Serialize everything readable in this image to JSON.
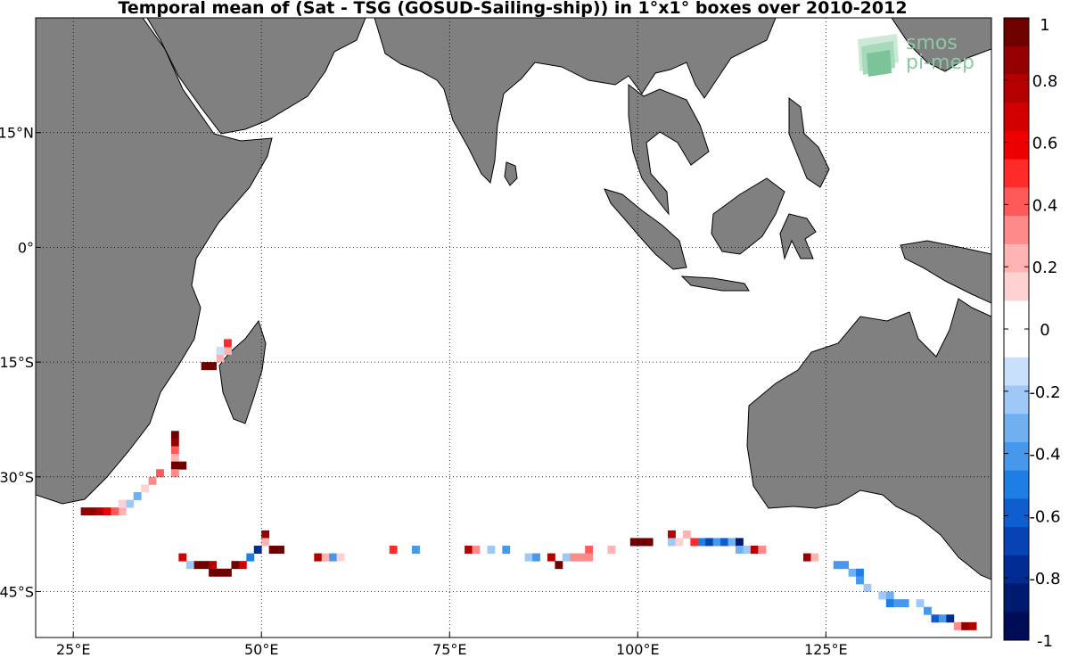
{
  "title": "Temporal mean of (Sat - TSG (GOSUD-Sailing-ship)) in 1°x1° boxes over 2010-2012",
  "logo": {
    "line1": "smos",
    "line2": "pi-mep",
    "icon": "smos-pi-mep-logo-icon"
  },
  "map": {
    "region": "Indian Ocean",
    "lon_range": [
      20,
      147
    ],
    "lat_range": [
      -51,
      30
    ],
    "land_color": "#808080",
    "ocean_color": "#ffffff",
    "grid": "dotted",
    "lon_ticks": [
      {
        "value": 25,
        "label": "25°E"
      },
      {
        "value": 50,
        "label": "50°E"
      },
      {
        "value": 75,
        "label": "75°E"
      },
      {
        "value": 100,
        "label": "100°E"
      },
      {
        "value": 125,
        "label": "125°E"
      }
    ],
    "lat_ticks": [
      {
        "value": 15,
        "label": "15°N"
      },
      {
        "value": 0,
        "label": "0°"
      },
      {
        "value": -15,
        "label": "15°S"
      },
      {
        "value": -30,
        "label": "30°S"
      },
      {
        "value": -45,
        "label": "45°S"
      }
    ]
  },
  "colorbar": {
    "range": [
      -1,
      1
    ],
    "ticks": [
      "1",
      "0.8",
      "0.6",
      "0.4",
      "0.2",
      "0",
      "-0.2",
      "-0.4",
      "-0.6",
      "-0.8",
      "-1"
    ],
    "colors": [
      "#6e0000",
      "#950000",
      "#b40000",
      "#d20000",
      "#ee0000",
      "#ff2a2a",
      "#ff5a5a",
      "#ff8a8a",
      "#ffb3b3",
      "#ffd2d2",
      "#ffffff",
      "#ffffff",
      "#c8e0fb",
      "#9ec8f5",
      "#70b0f0",
      "#4698ec",
      "#1f7ee3",
      "#0e5ed0",
      "#0743b2",
      "#002b92",
      "#001a70",
      "#000c55"
    ]
  },
  "data_cells": [
    [
      44,
      -15,
      0.25
    ],
    [
      45,
      -14,
      0.25
    ],
    [
      45,
      -13,
      0.5
    ],
    [
      44,
      -14,
      -0.15
    ],
    [
      43,
      -16,
      1.0
    ],
    [
      42,
      -16,
      1.0
    ],
    [
      38,
      -25,
      1.0
    ],
    [
      38,
      -26,
      0.9
    ],
    [
      38,
      -27,
      0.4
    ],
    [
      38,
      -28,
      0.2
    ],
    [
      38,
      -29,
      1.0
    ],
    [
      39,
      -29,
      1.0
    ],
    [
      38,
      -30,
      0.3
    ],
    [
      36,
      -30,
      0.4
    ],
    [
      35,
      -31,
      0.3
    ],
    [
      34,
      -32,
      0.15
    ],
    [
      33,
      -33,
      -0.3
    ],
    [
      32,
      -34,
      -0.2
    ],
    [
      31,
      -35,
      0.2
    ],
    [
      31,
      -34,
      0.15
    ],
    [
      26,
      -35,
      0.9
    ],
    [
      27,
      -35,
      0.9
    ],
    [
      28,
      -35,
      0.8
    ],
    [
      29,
      -35,
      0.6
    ],
    [
      30,
      -35,
      0.4
    ],
    [
      50,
      -38,
      0.9
    ],
    [
      50,
      -39,
      0.2
    ],
    [
      51,
      -40,
      1.0
    ],
    [
      52,
      -40,
      1.0
    ],
    [
      49,
      -40,
      -0.8
    ],
    [
      48,
      -41,
      -0.5
    ],
    [
      47,
      -42,
      0.7
    ],
    [
      46,
      -42,
      1.0
    ],
    [
      45,
      -43,
      1.0
    ],
    [
      44,
      -43,
      1.0
    ],
    [
      43,
      -43,
      1.0
    ],
    [
      43,
      -42,
      0.8
    ],
    [
      42,
      -42,
      1.0
    ],
    [
      41,
      -42,
      1.0
    ],
    [
      40,
      -42,
      -0.2
    ],
    [
      39,
      -41,
      0.7
    ],
    [
      57,
      -41,
      0.8
    ],
    [
      58,
      -41,
      0.2
    ],
    [
      59,
      -41,
      -0.4
    ],
    [
      60,
      -41,
      0.15
    ],
    [
      67,
      -40,
      0.5
    ],
    [
      70,
      -40,
      -0.4
    ],
    [
      77,
      -40,
      0.8
    ],
    [
      78,
      -40,
      0.3
    ],
    [
      80,
      -40,
      -0.2
    ],
    [
      82,
      -40,
      -0.4
    ],
    [
      85,
      -41,
      -0.2
    ],
    [
      86,
      -41,
      -0.4
    ],
    [
      88,
      -41,
      0.8
    ],
    [
      89,
      -42,
      1.0
    ],
    [
      90,
      -41,
      -0.2
    ],
    [
      91,
      -41,
      0.3
    ],
    [
      92,
      -41,
      0.3
    ],
    [
      93,
      -40,
      0.4
    ],
    [
      93,
      -41,
      0.3
    ],
    [
      96,
      -40,
      0.2
    ],
    [
      99,
      -39,
      1.0
    ],
    [
      100,
      -39,
      1.0
    ],
    [
      101,
      -39,
      1.0
    ],
    [
      104,
      -38,
      0.8
    ],
    [
      104,
      -39,
      -0.2
    ],
    [
      105,
      -39,
      0.1
    ],
    [
      106,
      -38,
      0.2
    ],
    [
      107,
      -39,
      0.5
    ],
    [
      108,
      -39,
      -0.5
    ],
    [
      109,
      -39,
      -0.7
    ],
    [
      110,
      -39,
      -0.4
    ],
    [
      111,
      -39,
      -0.6
    ],
    [
      112,
      -39,
      -0.3
    ],
    [
      113,
      -39,
      -0.9
    ],
    [
      113,
      -40,
      -0.3
    ],
    [
      114,
      -40,
      -0.2
    ],
    [
      115,
      -40,
      0.8
    ],
    [
      116,
      -40,
      0.3
    ],
    [
      122,
      -41,
      0.9
    ],
    [
      123,
      -41,
      0.2
    ],
    [
      126,
      -42,
      -0.4
    ],
    [
      127,
      -42,
      -0.4
    ],
    [
      128,
      -43,
      -0.3
    ],
    [
      129,
      -43,
      -0.5
    ],
    [
      129,
      -44,
      -0.4
    ],
    [
      130,
      -45,
      -0.2
    ],
    [
      132,
      -46,
      -0.2
    ],
    [
      133,
      -46,
      -0.3
    ],
    [
      133,
      -47,
      -0.5
    ],
    [
      134,
      -47,
      -0.4
    ],
    [
      135,
      -47,
      -0.4
    ],
    [
      137,
      -47,
      -0.2
    ],
    [
      138,
      -48,
      -0.4
    ],
    [
      139,
      -49,
      -0.6
    ],
    [
      140,
      -49,
      -0.4
    ],
    [
      141,
      -49,
      -0.8
    ],
    [
      142,
      -50,
      0.3
    ],
    [
      143,
      -50,
      0.9
    ],
    [
      144,
      -50,
      0.8
    ]
  ]
}
